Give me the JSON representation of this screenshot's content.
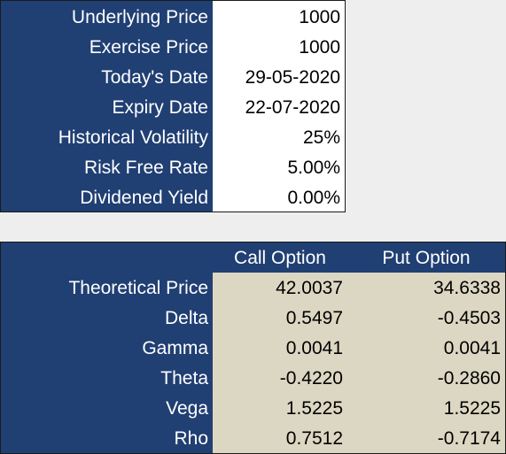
{
  "inputs": {
    "rows": [
      {
        "label": "Underlying Price",
        "value": "1000"
      },
      {
        "label": "Exercise Price",
        "value": "1000"
      },
      {
        "label": "Today's Date",
        "value": "29-05-2020"
      },
      {
        "label": "Expiry Date",
        "value": "22-07-2020"
      },
      {
        "label": "Historical Volatility",
        "value": "25%"
      },
      {
        "label": "Risk Free Rate",
        "value": "5.00%"
      },
      {
        "label": "Dividened Yield",
        "value": "0.00%"
      }
    ]
  },
  "results": {
    "headers": {
      "call": "Call Option",
      "put": "Put Option"
    },
    "rows": [
      {
        "label": "Theoretical Price",
        "call": "42.0037",
        "put": "34.6338"
      },
      {
        "label": "Delta",
        "call": "0.5497",
        "put": "-0.4503"
      },
      {
        "label": "Gamma",
        "call": "0.0041",
        "put": "0.0041"
      },
      {
        "label": "Theta",
        "call": "-0.4220",
        "put": "-0.2860"
      },
      {
        "label": "Vega",
        "call": "1.5225",
        "put": "1.5225"
      },
      {
        "label": "Rho",
        "call": "0.7512",
        "put": "-0.7174"
      }
    ]
  },
  "colors": {
    "header_fill": "#203f73",
    "input_fill": "#ffffff",
    "result_fill": "#dcd7c2",
    "background": "#eeeeee"
  }
}
